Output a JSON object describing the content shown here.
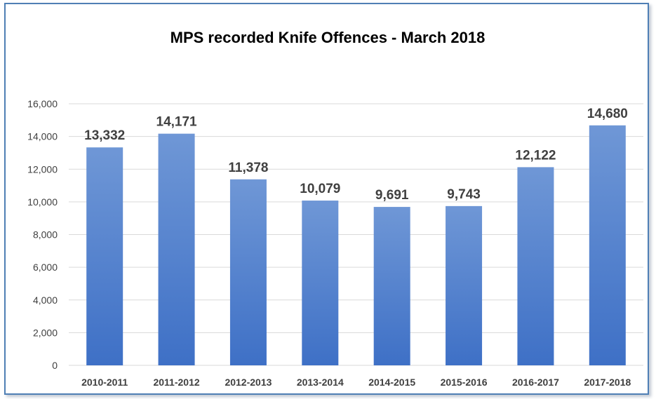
{
  "chart_data": {
    "type": "bar",
    "title": "MPS recorded Knife Offences - March 2018",
    "categories": [
      "2010-2011",
      "2011-2012",
      "2012-2013",
      "2013-2014",
      "2014-2015",
      "2015-2016",
      "2016-2017",
      "2017-2018"
    ],
    "values": [
      13332,
      14171,
      11378,
      10079,
      9691,
      9743,
      12122,
      14680
    ],
    "data_labels": [
      "13,332",
      "14,171",
      "11,378",
      "10,079",
      "9,691",
      "9,743",
      "12,122",
      "14,680"
    ],
    "ylim": [
      0,
      16000
    ],
    "yticks": [
      0,
      2000,
      4000,
      6000,
      8000,
      10000,
      12000,
      14000,
      16000
    ],
    "ytick_labels": [
      "0",
      "2,000",
      "4,000",
      "6,000",
      "8,000",
      "10,000",
      "12,000",
      "14,000",
      "16,000"
    ],
    "xlabel": "",
    "ylabel": "",
    "grid": true,
    "legend": "none",
    "colors": {
      "bar_top": "#6f97d6",
      "bar_bottom": "#3e70c6",
      "gridline": "#d9d9d9",
      "frame": "#4f7fb5"
    }
  }
}
